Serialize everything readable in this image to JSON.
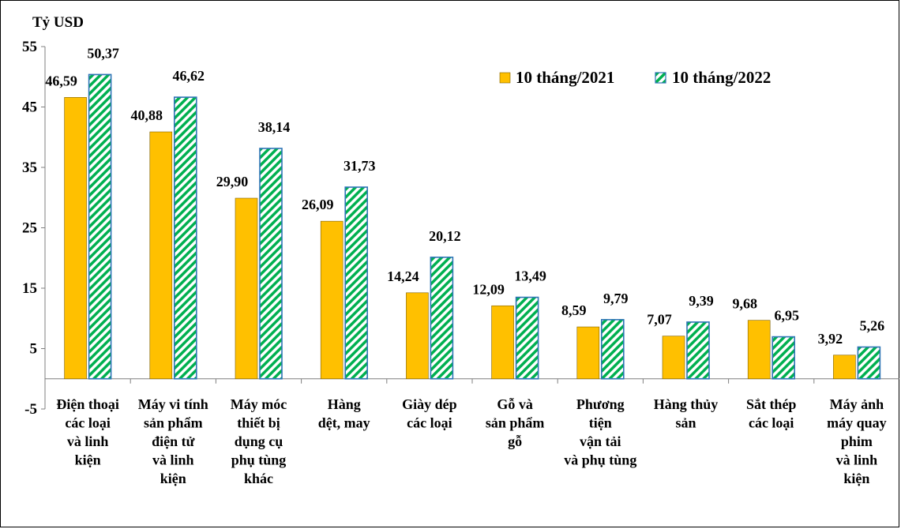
{
  "chart_data": {
    "type": "bar",
    "unit_label": "Tỷ USD",
    "ylim": [
      -5,
      55
    ],
    "yticks": [
      "55",
      "45",
      "35",
      "25",
      "15",
      "5",
      "-5"
    ],
    "ytick_values": [
      55,
      45,
      35,
      25,
      15,
      5,
      -5
    ],
    "grid": false,
    "legend_position": "top-right",
    "categories": [
      [
        "Điện thoại",
        "các loại",
        "và linh",
        "kiện"
      ],
      [
        "Máy vi tính",
        "sản phẩm",
        "điện tử",
        "và linh",
        "kiện"
      ],
      [
        "Máy móc",
        "thiết bị",
        "dụng cụ",
        "phụ tùng",
        "khác"
      ],
      [
        "Hàng",
        "dệt, may"
      ],
      [
        "Giày dép",
        "các loại"
      ],
      [
        "Gỗ và",
        "sản phẩm",
        "gỗ"
      ],
      [
        "Phương",
        "tiện",
        "vận tải",
        "và phụ tùng"
      ],
      [
        "Hàng thủy",
        "sản"
      ],
      [
        "Sắt thép",
        "các loại"
      ],
      [
        "Máy ảnh",
        "máy quay",
        "phim",
        "và linh",
        "kiện"
      ]
    ],
    "series": [
      {
        "name": "10 tháng/2021",
        "color": "#FFC000",
        "pattern": "solid",
        "values": [
          46.59,
          40.88,
          29.9,
          26.09,
          14.24,
          12.09,
          8.59,
          7.07,
          9.68,
          3.92
        ],
        "labels": [
          "46,59",
          "40,88",
          "29,90",
          "26,09",
          "14,24",
          "12,09",
          "8,59",
          "7,07",
          "9,68",
          "3,92"
        ]
      },
      {
        "name": "10 tháng/2022",
        "color": "#00B050",
        "edge_color": "#2E75B6",
        "pattern": "diagonal-stripes",
        "values": [
          50.37,
          46.62,
          38.14,
          31.73,
          20.12,
          13.49,
          9.79,
          9.39,
          6.95,
          5.26
        ],
        "labels": [
          "50,37",
          "46,62",
          "38,14",
          "31,73",
          "20,12",
          "13,49",
          "9,79",
          "9,39",
          "6,95",
          "5,26"
        ]
      }
    ]
  }
}
